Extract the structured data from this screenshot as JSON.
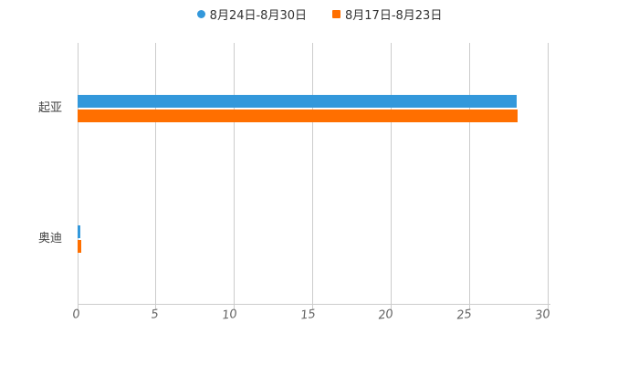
{
  "legend": {
    "items": [
      {
        "label": "8月24日-8月30日",
        "color": "#3398DB",
        "shape": "circle"
      },
      {
        "label": "8月17日-8月23日",
        "color": "#FF6F00",
        "shape": "square"
      }
    ]
  },
  "chart_data": {
    "type": "bar",
    "orientation": "horizontal",
    "title": "",
    "xlabel": "",
    "ylabel": "",
    "categories": [
      "起亚",
      "奥迪"
    ],
    "series": [
      {
        "name": "8月24日-8月30日",
        "color": "#3398DB",
        "marker": "circle",
        "values": [
          28,
          0.2
        ]
      },
      {
        "name": "8月17日-8月23日",
        "color": "#FF6F00",
        "marker": "square",
        "values": [
          28.1,
          0.25
        ]
      }
    ],
    "xlim": [
      0,
      30
    ],
    "xticks": [
      0,
      5,
      10,
      15,
      20,
      25,
      30
    ],
    "grid": true,
    "legend_position": "top-center",
    "background": "#FFFFFF"
  },
  "colors": {
    "grid": "#CCCCCC",
    "axis": "#CCCCCC",
    "x_tick_label": "#666666",
    "y_axis_label": "#444444",
    "legend_text": "#333333",
    "series_blue": "#3398DB",
    "series_orange": "#FF6F00"
  }
}
